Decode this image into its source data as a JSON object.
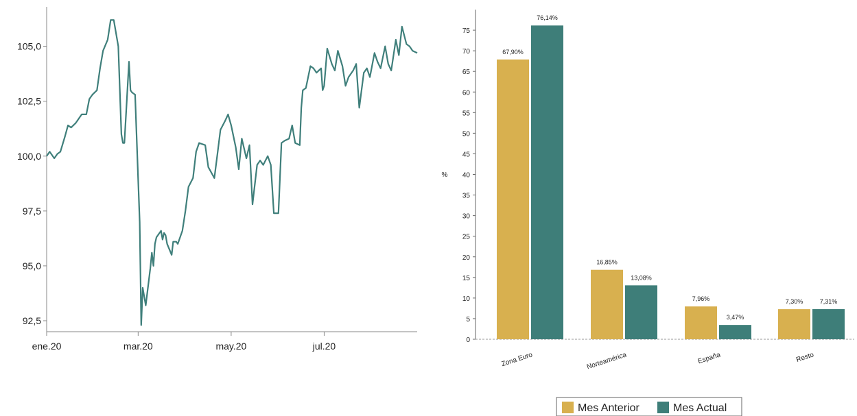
{
  "chart_data": [
    {
      "type": "line",
      "title": "",
      "xlabel": "",
      "ylabel": "",
      "ylim": [
        92.0,
        106.8
      ],
      "yticks": [
        "92,5",
        "95,0",
        "97,5",
        "100,0",
        "102,5",
        "105,0"
      ],
      "xticks": [
        "ene.20",
        "mar.20",
        "may.20",
        "jul.20"
      ],
      "x_range": [
        "2020-01-01",
        "2020-08-31"
      ],
      "grid": false,
      "colors": {
        "line": "#3f7f7b",
        "axis": "#888888"
      },
      "series": [
        {
          "x": [
            "2020-01-01",
            "2020-01-03",
            "2020-01-06",
            "2020-01-08",
            "2020-01-10",
            "2020-01-13",
            "2020-01-15",
            "2020-01-17",
            "2020-01-20",
            "2020-01-22",
            "2020-01-24",
            "2020-01-27",
            "2020-01-29",
            "2020-01-31",
            "2020-02-03",
            "2020-02-05",
            "2020-02-07",
            "2020-02-10",
            "2020-02-12",
            "2020-02-14",
            "2020-02-17",
            "2020-02-19",
            "2020-02-20",
            "2020-02-21",
            "2020-02-24",
            "2020-02-25",
            "2020-02-26",
            "2020-02-28",
            "2020-03-02",
            "2020-03-03",
            "2020-03-04",
            "2020-03-06",
            "2020-03-09",
            "2020-03-10",
            "2020-03-11",
            "2020-03-12",
            "2020-03-13",
            "2020-03-16",
            "2020-03-17",
            "2020-03-18",
            "2020-03-19",
            "2020-03-20",
            "2020-03-23",
            "2020-03-24",
            "2020-03-26",
            "2020-03-27",
            "2020-03-30",
            "2020-04-01",
            "2020-04-03",
            "2020-04-06",
            "2020-04-08",
            "2020-04-10",
            "2020-04-14",
            "2020-04-16",
            "2020-04-20",
            "2020-04-22",
            "2020-04-24",
            "2020-04-27",
            "2020-04-29",
            "2020-05-01",
            "2020-05-04",
            "2020-05-06",
            "2020-05-08",
            "2020-05-11",
            "2020-05-13",
            "2020-05-15",
            "2020-05-18",
            "2020-05-20",
            "2020-05-22",
            "2020-05-25",
            "2020-05-27",
            "2020-05-29",
            "2020-06-01",
            "2020-06-03",
            "2020-06-05",
            "2020-06-08",
            "2020-06-10",
            "2020-06-12",
            "2020-06-15",
            "2020-06-16",
            "2020-06-17",
            "2020-06-19",
            "2020-06-22",
            "2020-06-24",
            "2020-06-26",
            "2020-06-29",
            "2020-06-30",
            "2020-07-01",
            "2020-07-03",
            "2020-07-06",
            "2020-07-08",
            "2020-07-10",
            "2020-07-13",
            "2020-07-15",
            "2020-07-17",
            "2020-07-20",
            "2020-07-22",
            "2020-07-24",
            "2020-07-27",
            "2020-07-29",
            "2020-07-31",
            "2020-08-03",
            "2020-08-05",
            "2020-08-07",
            "2020-08-10",
            "2020-08-12",
            "2020-08-14",
            "2020-08-17",
            "2020-08-19",
            "2020-08-21",
            "2020-08-24",
            "2020-08-26",
            "2020-08-28",
            "2020-08-31"
          ],
          "y": [
            100.0,
            100.2,
            99.9,
            100.1,
            100.2,
            100.9,
            101.4,
            101.3,
            101.5,
            101.7,
            101.9,
            101.9,
            102.6,
            102.8,
            103.0,
            104.0,
            104.8,
            105.3,
            106.2,
            106.2,
            105.0,
            101.0,
            100.6,
            100.6,
            104.3,
            103.0,
            102.9,
            102.8,
            97.0,
            92.3,
            94.0,
            93.2,
            94.9,
            95.6,
            95.0,
            96.0,
            96.3,
            96.6,
            96.2,
            96.5,
            96.4,
            96.0,
            95.5,
            96.1,
            96.1,
            96.0,
            96.6,
            97.5,
            98.6,
            99.0,
            100.2,
            100.6,
            100.5,
            99.5,
            99.0,
            100.1,
            101.2,
            101.6,
            101.9,
            101.4,
            100.4,
            99.4,
            100.8,
            99.9,
            100.5,
            97.8,
            99.6,
            99.8,
            99.6,
            100.0,
            99.6,
            97.4,
            97.4,
            100.6,
            100.7,
            100.8,
            101.4,
            100.6,
            100.5,
            102.2,
            103.0,
            103.1,
            104.1,
            104.0,
            103.8,
            104.0,
            103.0,
            103.2,
            104.9,
            104.2,
            103.9,
            104.8,
            104.1,
            103.2,
            103.6,
            103.9,
            104.2,
            102.2,
            103.8,
            104.0,
            103.6,
            104.7,
            104.3,
            104.0,
            105.0,
            104.2,
            103.9,
            105.3,
            104.6,
            105.9,
            105.1,
            105.0,
            104.8,
            104.7
          ]
        }
      ]
    },
    {
      "type": "bar",
      "title": "",
      "xlabel": "",
      "ylabel": "%",
      "ylim": [
        0,
        80
      ],
      "yticks": [
        0,
        5,
        10,
        15,
        20,
        25,
        30,
        35,
        40,
        45,
        50,
        55,
        60,
        65,
        70,
        75
      ],
      "grid": false,
      "legend_placement": "bottom-right",
      "categories": [
        "Zona Euro",
        "Norteamérica",
        "España",
        "Resto"
      ],
      "series": [
        {
          "name": "Mes Anterior",
          "color": "#d8b04f",
          "values": [
            67.9,
            16.85,
            7.96,
            7.3
          ],
          "labels": [
            "67,90%",
            "16,85%",
            "7,96%",
            "7,30%"
          ]
        },
        {
          "name": "Mes Actual",
          "color": "#3e7e79",
          "values": [
            76.14,
            13.08,
            3.47,
            7.31
          ],
          "labels": [
            "76,14%",
            "13,08%",
            "3,47%",
            "7,31%"
          ]
        }
      ]
    }
  ]
}
